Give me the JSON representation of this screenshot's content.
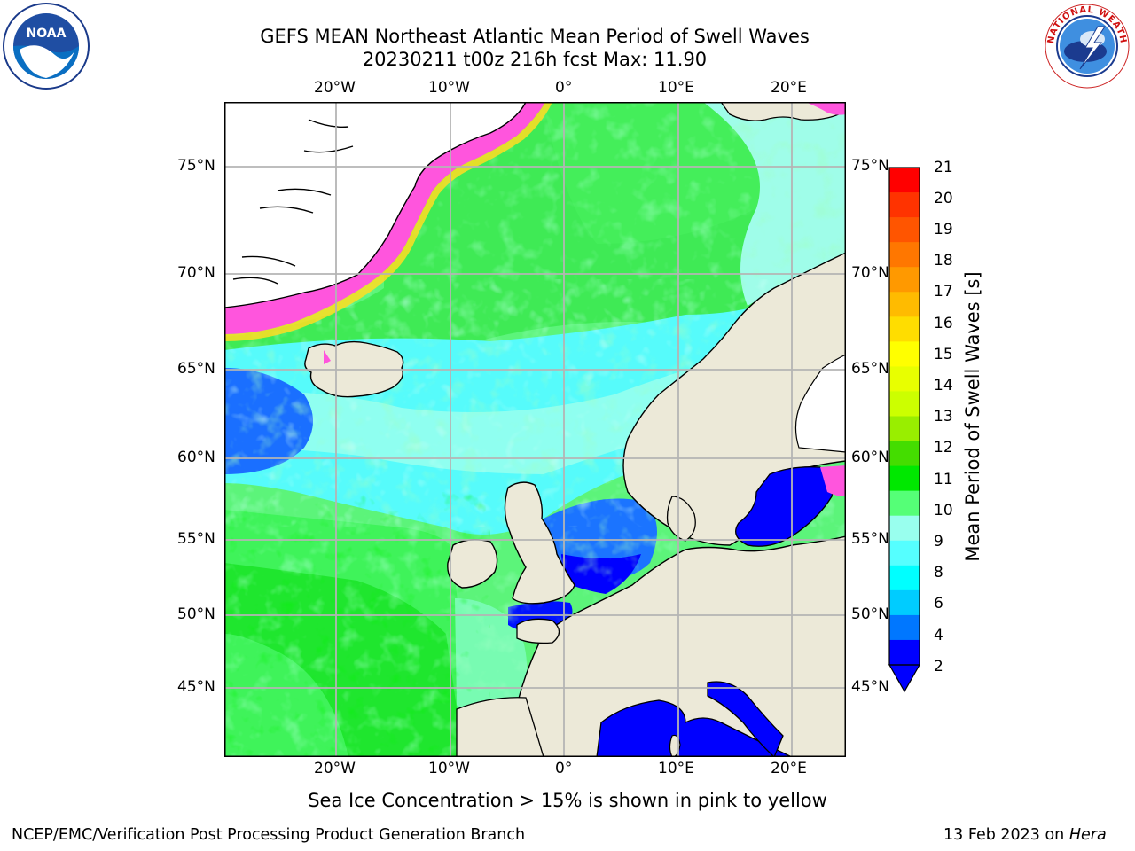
{
  "title_line1": "GEFS MEAN Northeast Atlantic Mean Period of Swell Waves",
  "title_line2": "20230211 t00z 216h fcst   Max: 11.90",
  "caption": "Sea Ice Concentration > 15% is shown in pink to yellow",
  "footer_left": "NCEP/EMC/Verification Post Processing Product Generation Branch",
  "footer_date": "13 Feb 2023 on ",
  "footer_host": "Hera",
  "logos": {
    "left": "NOAA",
    "right": "NATIONAL WEATHER SERVICE"
  },
  "map": {
    "lon_labels": [
      "20°W",
      "10°W",
      "0°",
      "10°E",
      "20°E"
    ],
    "lat_labels": [
      "75°N",
      "70°N",
      "65°N",
      "60°N",
      "55°N",
      "50°N",
      "45°N"
    ],
    "grid": "on"
  },
  "colorbar": {
    "label": "Mean Period of Swell Waves [s]",
    "ticks": [
      "21",
      "20",
      "19",
      "18",
      "17",
      "16",
      "15",
      "14",
      "13",
      "12",
      "11",
      "10",
      "9",
      "8",
      "6",
      "4",
      "2"
    ],
    "colors": [
      "#ff0000",
      "#ff3300",
      "#ff5500",
      "#ff7700",
      "#ff9900",
      "#ffbb00",
      "#ffdd00",
      "#ffff00",
      "#e8ff00",
      "#ccff00",
      "#99ee00",
      "#44dd00",
      "#00e800",
      "#55ff77",
      "#99ffee",
      "#55ffff",
      "#00ffff",
      "#00ccff",
      "#0077ff",
      "#0000ff"
    ],
    "extend": "min"
  }
}
